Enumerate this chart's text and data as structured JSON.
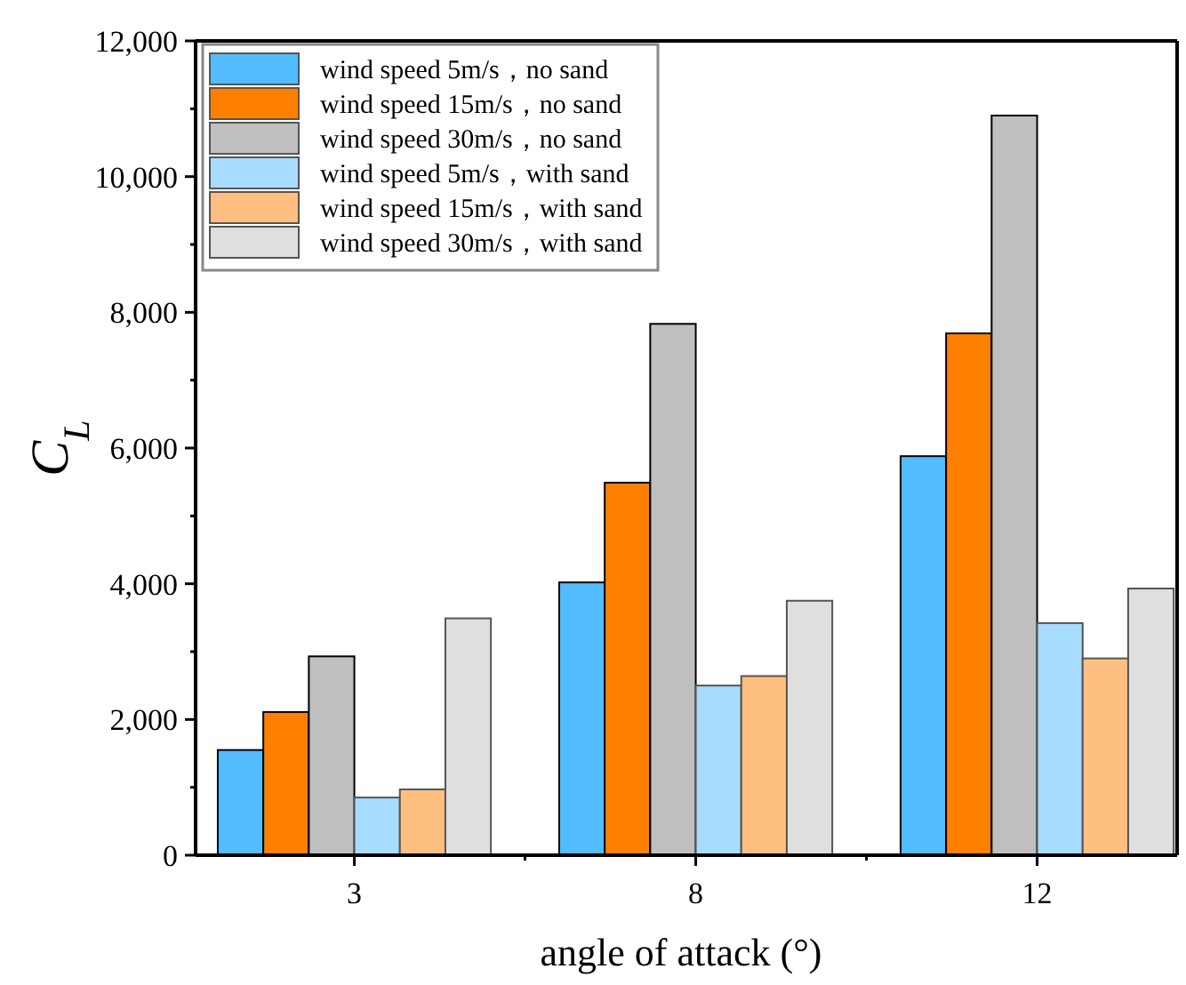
{
  "chart_data": {
    "type": "bar",
    "xlabel": "angle of attack (°)",
    "ylabel": "C$_{L}$",
    "categories": [
      "3",
      "8",
      "12"
    ],
    "series": [
      {
        "name": "wind speed 5m/s，no sand",
        "color": "#52bcff",
        "values": [
          1550,
          4020,
          5880
        ]
      },
      {
        "name": "wind speed 15m/s，no sand",
        "color": "#ff8000",
        "values": [
          2110,
          5490,
          7690
        ]
      },
      {
        "name": "wind speed 30m/s，no sand",
        "color": "#bfbfbf",
        "values": [
          2930,
          7830,
          10900
        ]
      },
      {
        "name": "wind speed 5m/s，with sand",
        "color": "#a8dcff",
        "values": [
          850,
          2500,
          3420
        ]
      },
      {
        "name": "wind speed 15m/s，with sand",
        "color": "#ffbf80",
        "values": [
          970,
          2640,
          2900
        ]
      },
      {
        "name": "wind speed 30m/s，with sand",
        "color": "#dfdfdf",
        "values": [
          3490,
          3750,
          3930
        ]
      }
    ],
    "ylim": [
      0,
      12000
    ],
    "yticks": [
      {
        "value": 0,
        "label": "0"
      },
      {
        "value": 2000,
        "label": "2,000"
      },
      {
        "value": 4000,
        "label": "4,000"
      },
      {
        "value": 6000,
        "label": "6,000"
      },
      {
        "value": 8000,
        "label": "8,000"
      },
      {
        "value": 10000,
        "label": "10,000"
      },
      {
        "value": 12000,
        "label": "12,000"
      }
    ],
    "grid": false,
    "legend": "top left"
  }
}
